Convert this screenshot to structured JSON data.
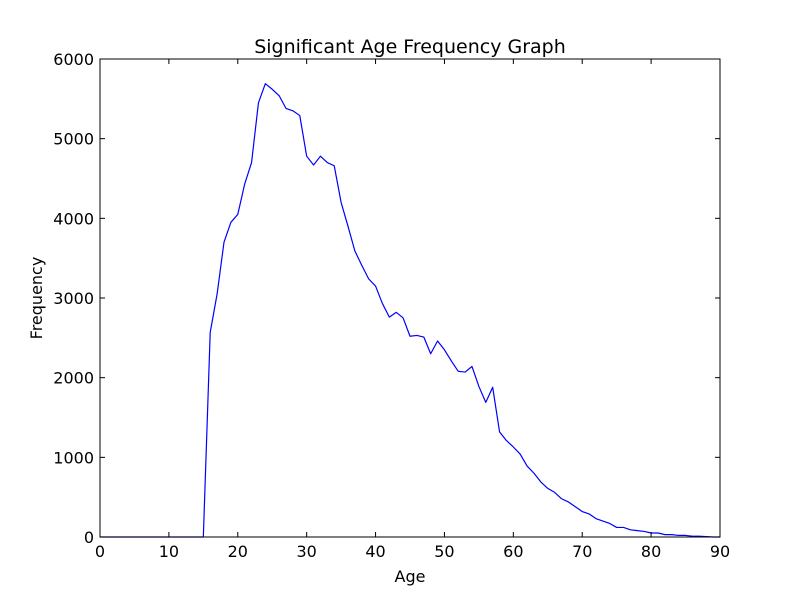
{
  "chart_data": {
    "type": "line",
    "title": "Significant Age Frequency Graph",
    "xlabel": "Age",
    "ylabel": "Frequency",
    "xlim": [
      0,
      90
    ],
    "ylim": [
      0,
      6000
    ],
    "xticks": [
      0,
      10,
      20,
      30,
      40,
      50,
      60,
      70,
      80,
      90
    ],
    "yticks": [
      0,
      1000,
      2000,
      3000,
      4000,
      5000,
      6000
    ],
    "grid": false,
    "legend": "none",
    "series": [
      {
        "color": "#0000ff",
        "x": [
          0,
          1,
          2,
          3,
          4,
          5,
          6,
          7,
          8,
          9,
          10,
          11,
          12,
          13,
          14,
          15,
          16,
          17,
          18,
          19,
          20,
          21,
          22,
          23,
          24,
          25,
          26,
          27,
          28,
          29,
          30,
          31,
          32,
          33,
          34,
          35,
          36,
          37,
          38,
          39,
          40,
          41,
          42,
          43,
          44,
          45,
          46,
          47,
          48,
          49,
          50,
          51,
          52,
          53,
          54,
          55,
          56,
          57,
          58,
          59,
          60,
          61,
          62,
          63,
          64,
          65,
          66,
          67,
          68,
          69,
          70,
          71,
          72,
          73,
          74,
          75,
          76,
          77,
          78,
          79,
          80,
          81,
          82,
          83,
          84,
          85,
          86,
          87,
          88,
          89,
          90
        ],
        "y": [
          0,
          0,
          0,
          0,
          0,
          0,
          0,
          0,
          0,
          0,
          0,
          0,
          0,
          0,
          0,
          0,
          2570,
          3050,
          3700,
          3950,
          4050,
          4430,
          4700,
          5450,
          5690,
          5620,
          5540,
          5380,
          5350,
          5290,
          4780,
          4670,
          4780,
          4700,
          4660,
          4200,
          3900,
          3590,
          3410,
          3240,
          3150,
          2930,
          2760,
          2820,
          2750,
          2520,
          2530,
          2510,
          2300,
          2460,
          2350,
          2210,
          2080,
          2070,
          2140,
          1890,
          1690,
          1880,
          1320,
          1210,
          1130,
          1040,
          890,
          800,
          690,
          610,
          560,
          480,
          440,
          380,
          320,
          290,
          230,
          200,
          170,
          120,
          120,
          90,
          80,
          70,
          50,
          50,
          30,
          30,
          20,
          20,
          10,
          10,
          5,
          0,
          0
        ]
      }
    ]
  }
}
